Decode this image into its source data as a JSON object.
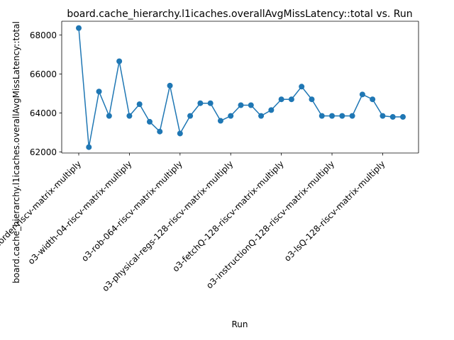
{
  "chart_data": {
    "type": "line",
    "title": "board.cache_hierarchy.l1icaches.overallAvgMissLatency::total vs. Run",
    "xlabel": "Run",
    "ylabel": "board.cache_hierarchy.l1icaches.overallAvgMissLatency::total",
    "ylim": [
      61950,
      68700
    ],
    "yticks": [
      62000,
      64000,
      66000,
      68000
    ],
    "ytick_labels": [
      "62000",
      "64000",
      "66000",
      "68000"
    ],
    "xtick_indices": [
      0,
      5,
      10,
      15,
      20,
      25,
      30
    ],
    "xtick_labels": [
      "inorder-riscv-matrix-multiply",
      "o3-width-04-riscv-matrix-multiply",
      "o3-rob-064-riscv-matrix-multiply",
      "o3-physical-regs-128-riscv-matrix-multiply",
      "o3-fetchQ-128-riscv-matrix-multiply",
      "o3-instructionQ-128-riscv-matrix-multiply",
      "o3-lsQ-128-riscv-matrix-multiply"
    ],
    "grid": false,
    "legend": "none",
    "color": "#1f77b4",
    "values": [
      68350,
      62250,
      65100,
      63850,
      66650,
      63850,
      64450,
      63550,
      63050,
      65400,
      62950,
      63850,
      64500,
      64500,
      63600,
      63850,
      64400,
      64400,
      63850,
      64150,
      64700,
      64700,
      65350,
      64700,
      63850,
      63850,
      63850,
      63850,
      64950,
      64700,
      63850,
      63800,
      63800
    ]
  }
}
